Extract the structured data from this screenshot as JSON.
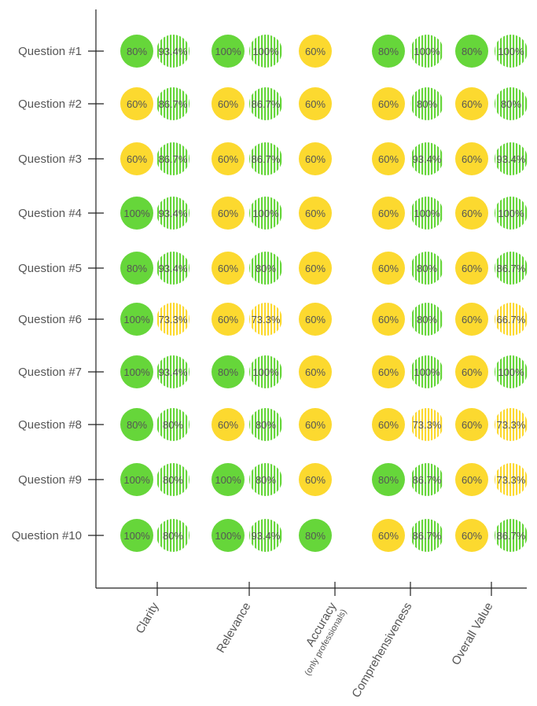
{
  "chart_data": {
    "type": "dot-matrix",
    "title": "",
    "questions": [
      "Question #1",
      "Question #2",
      "Question #3",
      "Question #4",
      "Question #5",
      "Question #6",
      "Question #7",
      "Question #8",
      "Question #9",
      "Question #10"
    ],
    "criteria": [
      {
        "label": "Clarity",
        "sublabel": ""
      },
      {
        "label": "Relevance",
        "sublabel": ""
      },
      {
        "label": "Accuracy",
        "sublabel": "(only professionals)"
      },
      {
        "label": "Comprehensiveness",
        "sublabel": ""
      },
      {
        "label": "Overall Value",
        "sublabel": ""
      }
    ],
    "series": [
      {
        "name": "Clarity",
        "solid": [
          "80%",
          "60%",
          "60%",
          "100%",
          "80%",
          "100%",
          "100%",
          "80%",
          "100%",
          "100%"
        ],
        "striped": [
          "93.4%",
          "86.7%",
          "86.7%",
          "93.4%",
          "93.4%",
          "73.3%",
          "93.4%",
          "80%",
          "80%",
          "80%"
        ]
      },
      {
        "name": "Relevance",
        "solid": [
          "100%",
          "60%",
          "60%",
          "60%",
          "60%",
          "60%",
          "80%",
          "60%",
          "100%",
          "100%"
        ],
        "striped": [
          "100%",
          "86.7%",
          "86.7%",
          "100%",
          "80%",
          "73.3%",
          "100%",
          "80%",
          "80%",
          "93.4%"
        ]
      },
      {
        "name": "Accuracy",
        "solid": [
          "60%",
          "60%",
          "60%",
          "60%",
          "60%",
          "60%",
          "60%",
          "60%",
          "60%",
          "80%"
        ],
        "striped": []
      },
      {
        "name": "Comprehensiveness",
        "solid": [
          "80%",
          "60%",
          "60%",
          "60%",
          "60%",
          "60%",
          "60%",
          "60%",
          "80%",
          "60%"
        ],
        "striped": [
          "100%",
          "80%",
          "93.4%",
          "100%",
          "80%",
          "80%",
          "100%",
          "73.3%",
          "86.7%",
          "86.7%"
        ]
      },
      {
        "name": "Overall Value",
        "solid": [
          "80%",
          "60%",
          "60%",
          "60%",
          "60%",
          "60%",
          "60%",
          "60%",
          "60%",
          "60%"
        ],
        "striped": [
          "100%",
          "80%",
          "93.4%",
          "100%",
          "86.7%",
          "66.7%",
          "100%",
          "73.3%",
          "73.3%",
          "86.7%"
        ]
      }
    ],
    "green_threshold": 80,
    "colors": {
      "green": "#66d63a",
      "yellow": "#fcd92f",
      "text": "#555555",
      "axis": "#222222"
    }
  }
}
